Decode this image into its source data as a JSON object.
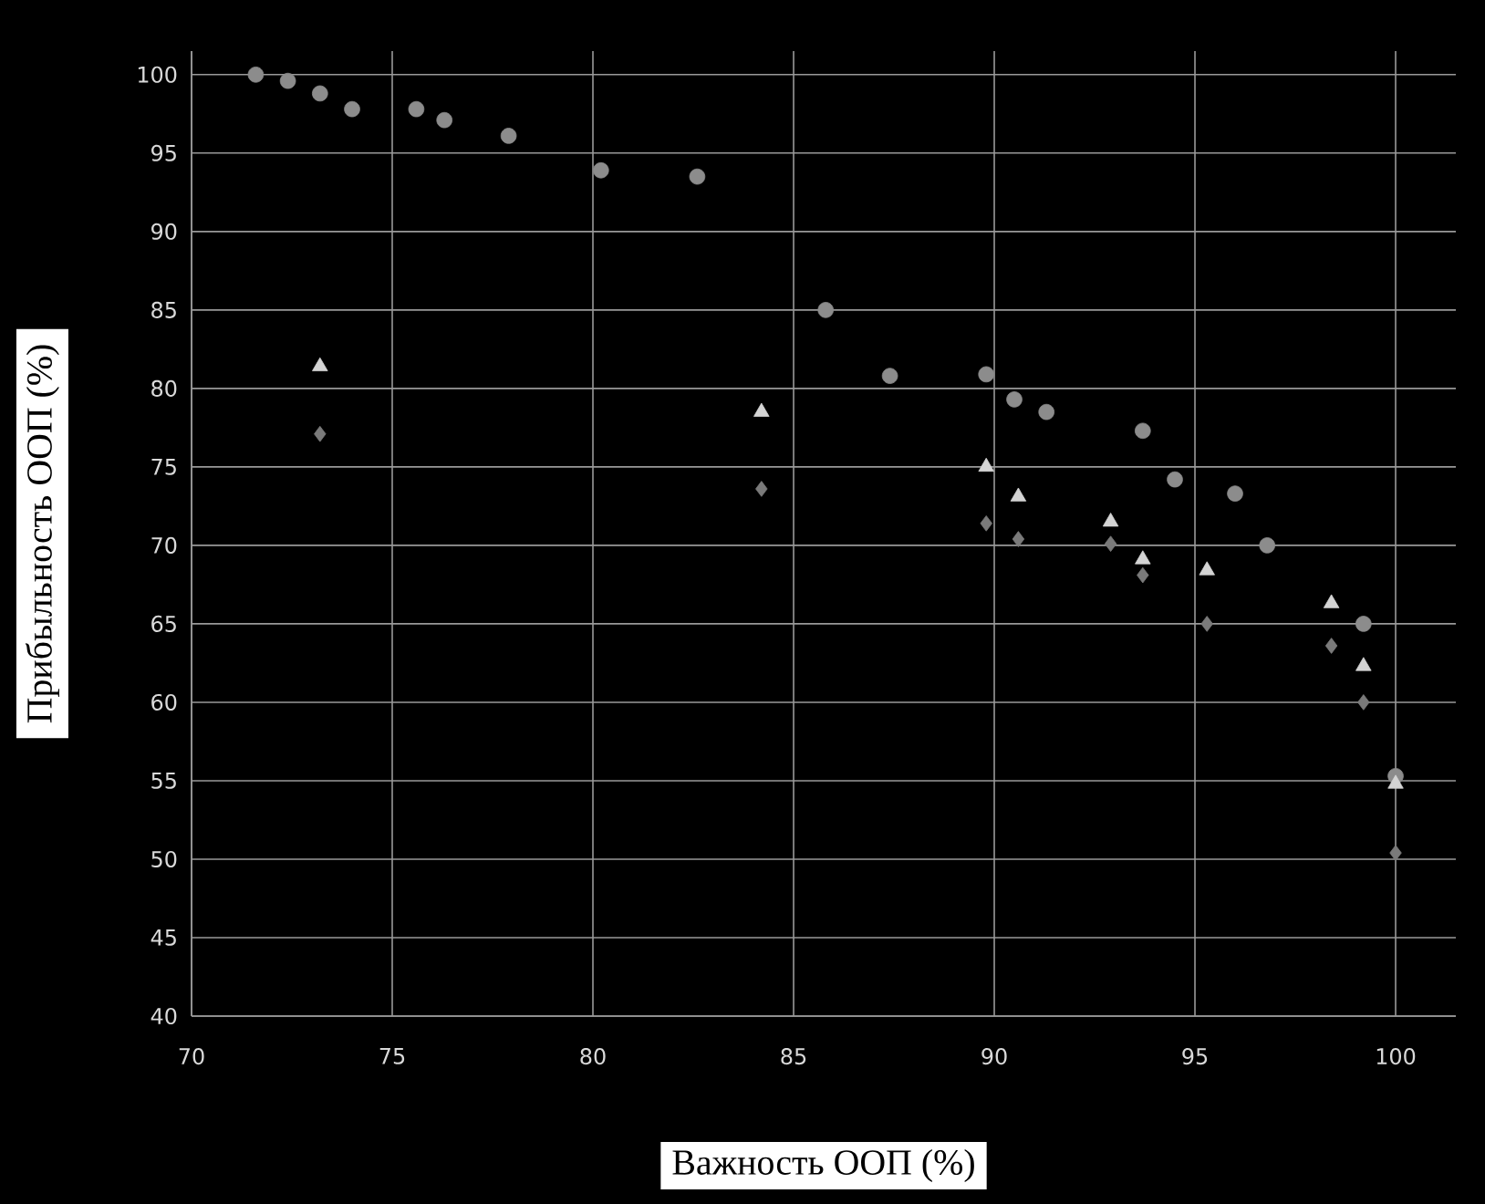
{
  "chart_data": {
    "type": "scatter",
    "xlabel": "Важность ООП (%)",
    "ylabel": "Прибыльность ООП (%)",
    "xlim": [
      70,
      101.5
    ],
    "ylim": [
      40,
      101.5
    ],
    "xticks": [
      70,
      75,
      80,
      85,
      90,
      95,
      100
    ],
    "yticks": [
      40,
      45,
      50,
      55,
      60,
      65,
      70,
      75,
      80,
      85,
      90,
      95,
      100
    ],
    "grid": true,
    "series": [
      {
        "color": "#8c8c8c",
        "marker": "circle",
        "x": [
          71.6,
          72.4,
          73.2,
          74.0,
          75.6,
          76.3,
          77.9,
          80.2,
          82.6,
          85.8,
          87.4,
          89.8,
          90.5,
          91.3,
          93.7,
          94.5,
          96.0,
          96.8,
          99.2,
          100
        ],
        "values": [
          100,
          99.6,
          98.8,
          97.8,
          97.8,
          97.1,
          96.1,
          93.9,
          93.5,
          85.0,
          80.8,
          80.9,
          79.3,
          78.5,
          77.3,
          74.2,
          73.3,
          70.0,
          65.0,
          55.3
        ]
      },
      {
        "color": "#d4d4d4",
        "marker": "triangle",
        "x": [
          73.2,
          84.2,
          89.8,
          90.6,
          92.9,
          93.7,
          95.3,
          98.4,
          99.2,
          100
        ],
        "values": [
          81.4,
          78.5,
          75.0,
          73.1,
          71.5,
          69.1,
          68.4,
          66.3,
          62.3,
          54.8
        ]
      },
      {
        "color": "#7a7a7a",
        "marker": "diamond",
        "x": [
          73.2,
          84.2,
          89.8,
          90.6,
          92.9,
          93.7,
          95.3,
          98.4,
          99.2,
          100
        ],
        "values": [
          77.1,
          73.6,
          71.4,
          70.4,
          70.1,
          68.1,
          65.0,
          63.6,
          60.0,
          50.4
        ]
      }
    ]
  }
}
